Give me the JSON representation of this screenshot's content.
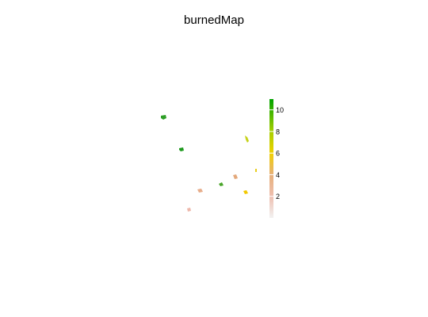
{
  "title": "burnedMap",
  "legend": {
    "ticks": [
      {
        "value": 10,
        "label": "10"
      },
      {
        "value": 8,
        "label": "8"
      },
      {
        "value": 6,
        "label": "6"
      },
      {
        "value": 4,
        "label": "4"
      },
      {
        "value": 2,
        "label": "2"
      }
    ],
    "range": [
      0,
      11
    ],
    "color_stops": [
      {
        "value": 0,
        "color": "#f2f2f2"
      },
      {
        "value": 2,
        "color": "#eebfb0"
      },
      {
        "value": 4,
        "color": "#e7b07a"
      },
      {
        "value": 6,
        "color": "#f0d000"
      },
      {
        "value": 8,
        "color": "#a6cf00"
      },
      {
        "value": 11,
        "color": "#00a300"
      }
    ]
  },
  "patches": [
    {
      "value": 10,
      "color": "#2e9e26"
    },
    {
      "value": 10,
      "color": "#1e9a1e"
    },
    {
      "value": 7,
      "color": "#c6d21a"
    },
    {
      "value": 5,
      "color": "#f2c800"
    },
    {
      "value": 4,
      "color": "#e3a87a"
    },
    {
      "value": 9,
      "color": "#4aa52a"
    },
    {
      "value": 3,
      "color": "#e7ad8a"
    },
    {
      "value": 6,
      "color": "#e8cd1e"
    },
    {
      "value": 2,
      "color": "#edb7aa"
    }
  ]
}
